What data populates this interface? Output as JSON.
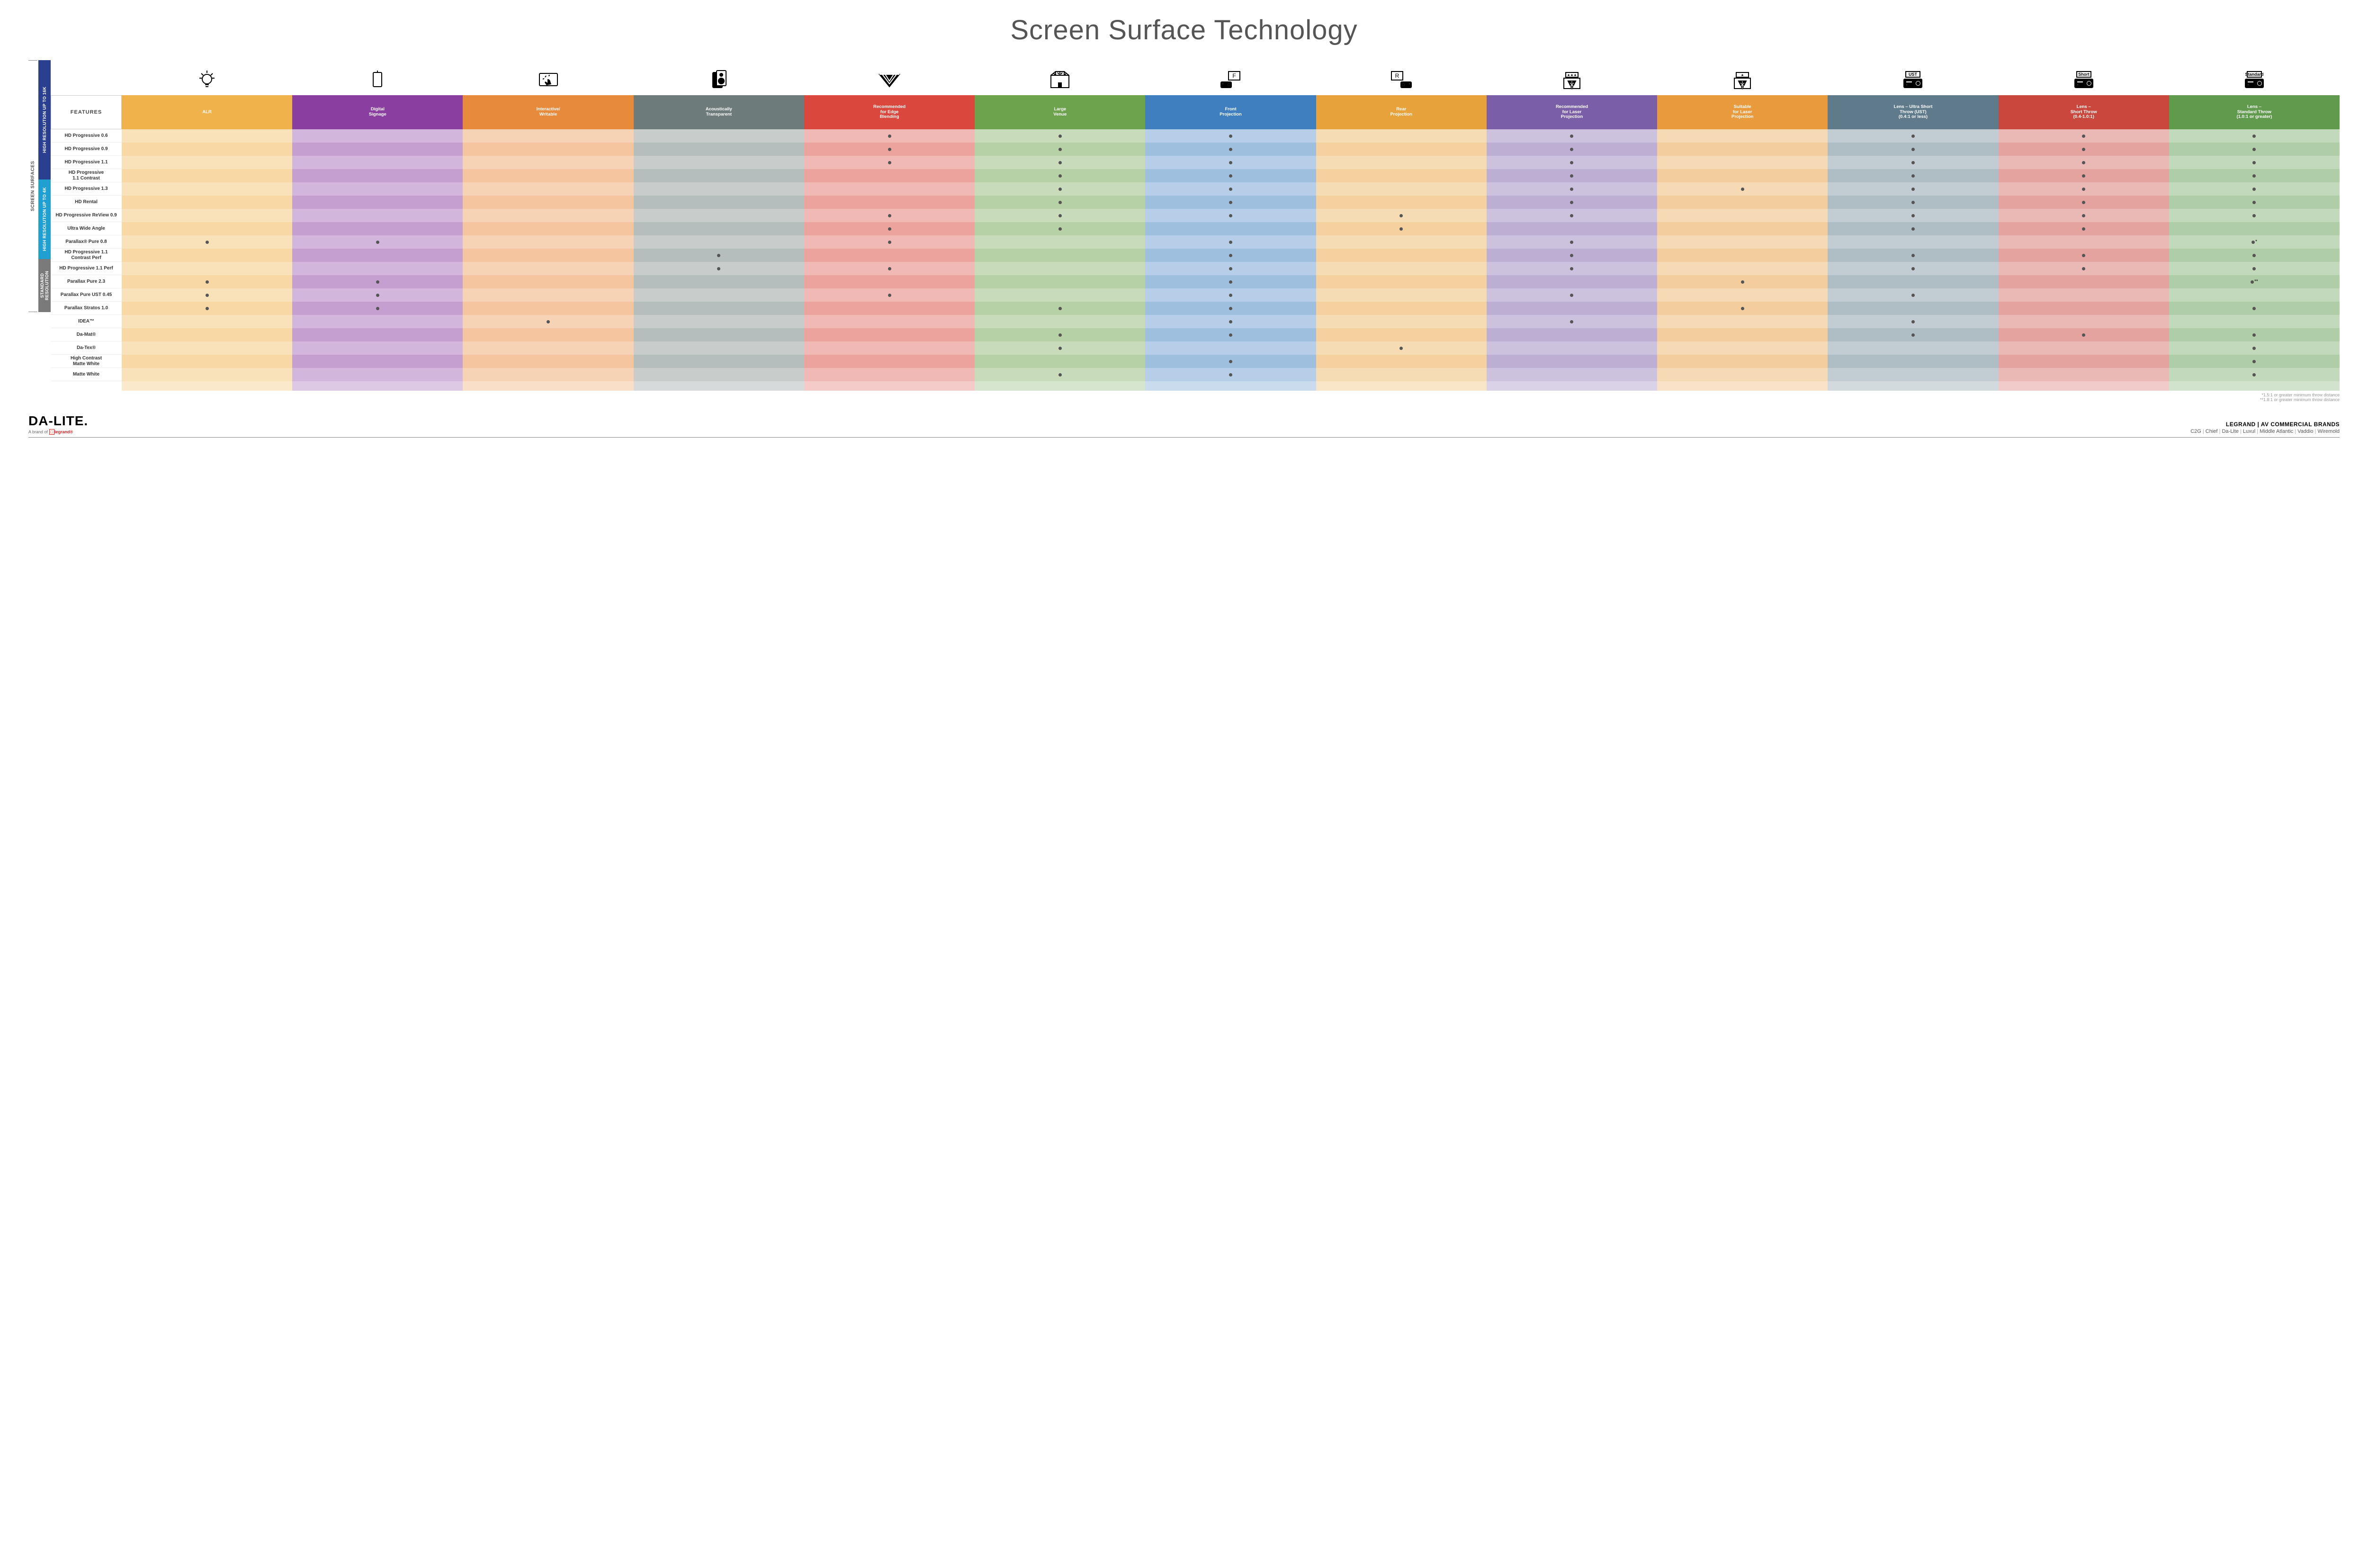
{
  "title": "Screen Surface Technology",
  "colors": {
    "columns": [
      "#f0b24a",
      "#8a3fa0",
      "#e88a3c",
      "#6d7c7a",
      "#d9473d",
      "#6da34d",
      "#3f7fbf",
      "#e8a23c",
      "#7a5fa8",
      "#e89a3c",
      "#5f7a8a",
      "#c9473d",
      "#5f9a4d"
    ],
    "groups": [
      "#2a3f8f",
      "#1fa0d0",
      "#7a7a7a"
    ]
  },
  "featuresLabel": "FEATURES",
  "sideOuter": "SCREEN SURFACES",
  "columns": [
    {
      "label": "ALR",
      "icon": "bulb"
    },
    {
      "label": "Digital\nSignage",
      "icon": "signage"
    },
    {
      "label": "Interactive/\nWritable",
      "icon": "touch"
    },
    {
      "label": "Acoustically\nTransparent",
      "icon": "speaker"
    },
    {
      "label": "Recommended\nfor Edge\nBlending",
      "icon": "blend"
    },
    {
      "label": "Large\nVenue",
      "icon": "venue"
    },
    {
      "label": "Front\nProjection",
      "icon": "front"
    },
    {
      "label": "Rear\nProjection",
      "icon": "rear"
    },
    {
      "label": "Recommended\nfor Laser\nProjection",
      "icon": "laser3"
    },
    {
      "label": "Suitable\nfor Laser\nProjection",
      "icon": "laser1"
    },
    {
      "label": "Lens – Ultra Short\nThrow (UST)\n(0.4:1 or less)",
      "icon": "lens",
      "lens": "UST"
    },
    {
      "label": "Lens –\nShort Throw\n(0.4-1.0:1)",
      "icon": "lens",
      "lens": "Short"
    },
    {
      "label": "Lens –\nStandard Throw\n(1.0:1 or greater)",
      "icon": "lens",
      "lens": "Standard"
    }
  ],
  "groups": [
    {
      "label": "HIGH RESOLUTION UP TO 16K",
      "rows": [
        {
          "name": "HD Progressive 0.6",
          "dots": [
            0,
            0,
            0,
            0,
            1,
            1,
            1,
            0,
            1,
            0,
            1,
            1,
            1
          ]
        },
        {
          "name": "HD Progressive 0.9",
          "dots": [
            0,
            0,
            0,
            0,
            1,
            1,
            1,
            0,
            1,
            0,
            1,
            1,
            1
          ]
        },
        {
          "name": "HD Progressive 1.1",
          "dots": [
            0,
            0,
            0,
            0,
            1,
            1,
            1,
            0,
            1,
            0,
            1,
            1,
            1
          ]
        },
        {
          "name": "HD Progressive\n1.1 Contrast",
          "dots": [
            0,
            0,
            0,
            0,
            0,
            1,
            1,
            0,
            1,
            0,
            1,
            1,
            1
          ]
        },
        {
          "name": "HD Progressive 1.3",
          "dots": [
            0,
            0,
            0,
            0,
            0,
            1,
            1,
            0,
            1,
            1,
            1,
            1,
            1
          ]
        },
        {
          "name": "HD Rental",
          "dots": [
            0,
            0,
            0,
            0,
            0,
            1,
            1,
            0,
            1,
            0,
            1,
            1,
            1
          ]
        },
        {
          "name": "HD Progressive ReView 0.9",
          "dots": [
            0,
            0,
            0,
            0,
            1,
            1,
            1,
            1,
            1,
            0,
            1,
            1,
            1
          ]
        },
        {
          "name": "Ultra Wide Angle",
          "dots": [
            0,
            0,
            0,
            0,
            1,
            1,
            0,
            1,
            0,
            0,
            1,
            1,
            0
          ]
        },
        {
          "name": "Parallax® Pure 0.8",
          "dots": [
            1,
            1,
            0,
            0,
            1,
            0,
            1,
            0,
            1,
            0,
            0,
            0,
            "•*"
          ]
        }
      ]
    },
    {
      "label": "HIGH RESOLUTION UP TO 4K",
      "rows": [
        {
          "name": "HD Progressive 1.1\nContrast Perf",
          "dots": [
            0,
            0,
            0,
            1,
            0,
            0,
            1,
            0,
            1,
            0,
            1,
            1,
            1
          ]
        },
        {
          "name": "HD Progressive 1.1 Perf",
          "dots": [
            0,
            0,
            0,
            1,
            1,
            0,
            1,
            0,
            1,
            0,
            1,
            1,
            1
          ]
        },
        {
          "name": "Parallax Pure 2.3",
          "dots": [
            1,
            1,
            0,
            0,
            0,
            0,
            1,
            0,
            0,
            1,
            0,
            0,
            "•**"
          ]
        },
        {
          "name": "Parallax Pure UST 0.45",
          "dots": [
            1,
            1,
            0,
            0,
            1,
            0,
            1,
            0,
            1,
            0,
            1,
            0,
            0
          ]
        },
        {
          "name": "Parallax Stratos 1.0",
          "dots": [
            1,
            1,
            0,
            0,
            0,
            1,
            1,
            0,
            0,
            1,
            0,
            0,
            1
          ]
        },
        {
          "name": "IDEA™",
          "dots": [
            0,
            0,
            1,
            0,
            0,
            0,
            1,
            0,
            1,
            0,
            1,
            0,
            0
          ]
        }
      ]
    },
    {
      "label": "STANDARD\nRESOLUTION",
      "rows": [
        {
          "name": "Da-Mat®",
          "dots": [
            0,
            0,
            0,
            0,
            0,
            1,
            1,
            0,
            0,
            0,
            1,
            1,
            1
          ]
        },
        {
          "name": "Da-Tex®",
          "dots": [
            0,
            0,
            0,
            0,
            0,
            1,
            0,
            1,
            0,
            0,
            0,
            0,
            1
          ]
        },
        {
          "name": "High Contrast\nMatte White",
          "dots": [
            0,
            0,
            0,
            0,
            0,
            0,
            1,
            0,
            0,
            0,
            0,
            0,
            1
          ]
        },
        {
          "name": "Matte White",
          "dots": [
            0,
            0,
            0,
            0,
            0,
            1,
            1,
            0,
            0,
            0,
            0,
            0,
            1
          ]
        }
      ]
    }
  ],
  "footnotes": [
    "*1.5:1 or greater minimum throw distance",
    "**1.8:1 or greater minimum throw distance"
  ],
  "footer": {
    "logo": "DA-LITE.",
    "logoSub": "A brand of",
    "logoBrand": "legrand®",
    "brandsTitle": "LEGRAND | AV COMMERCIAL BRANDS",
    "brands": [
      "C2G",
      "Chief",
      "Da-Lite",
      "Luxul",
      "Middle Atlantic",
      "Vaddio",
      "Wiremold"
    ]
  }
}
